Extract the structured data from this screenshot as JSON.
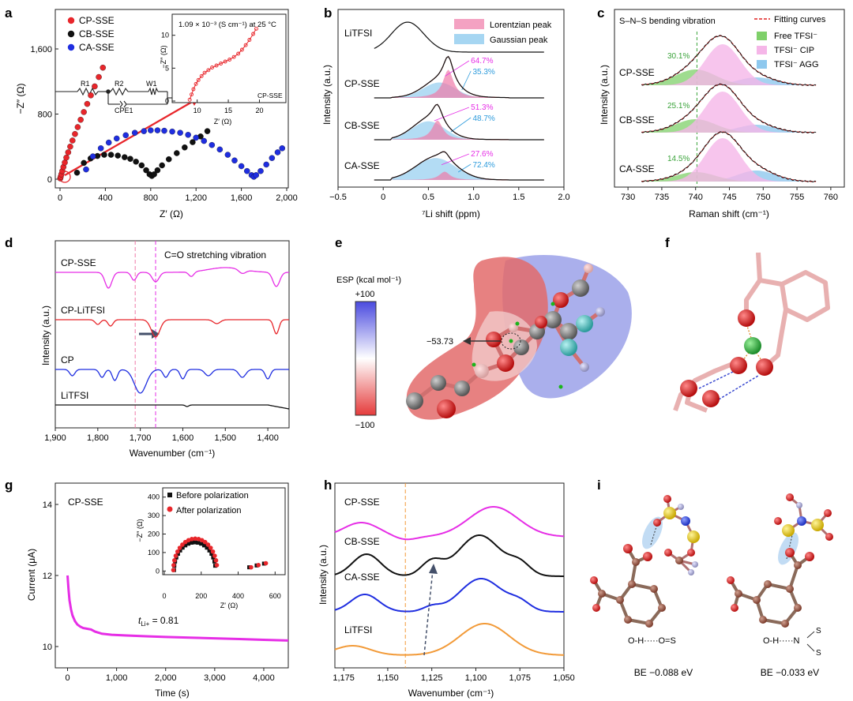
{
  "panel_letters": [
    "a",
    "b",
    "c",
    "d",
    "e",
    "f",
    "g",
    "h",
    "i"
  ],
  "chart_data": [
    {
      "panel": "a",
      "type": "scatter",
      "xlabel": "Z′ (Ω)",
      "ylabel": "−Z″ (Ω)",
      "xlim": [
        0,
        2000
      ],
      "ylim": [
        -50,
        2000
      ],
      "xticks": [
        "0",
        "400",
        "800",
        "1,200",
        "1,600",
        "2,000"
      ],
      "yticks": [
        "0",
        "800",
        "1,600"
      ],
      "legend_position": "top-left",
      "series": [
        {
          "name": "CP-SSE",
          "color": "#e8262b",
          "x": [
            2,
            6,
            12,
            20,
            30,
            42,
            56,
            72,
            90,
            110,
            132,
            156,
            182,
            210,
            240,
            272,
            306,
            342,
            378
          ],
          "y": [
            10,
            30,
            60,
            100,
            150,
            205,
            265,
            330,
            400,
            475,
            555,
            640,
            730,
            825,
            925,
            1030,
            1140,
            1255,
            1370
          ]
        },
        {
          "name": "CB-SSE",
          "color": "#111111",
          "x": [
            150,
            210,
            270,
            330,
            390,
            450,
            510,
            570,
            620,
            670,
            720,
            760,
            790,
            810,
            830,
            860,
            900,
            960,
            1030,
            1100,
            1170,
            1240,
            1300
          ],
          "y": [
            80,
            200,
            255,
            285,
            300,
            300,
            290,
            270,
            250,
            215,
            170,
            110,
            60,
            40,
            60,
            110,
            170,
            245,
            320,
            390,
            455,
            525,
            590
          ]
        },
        {
          "name": "CA-SSE",
          "color": "#1f2ee0",
          "x": [
            230,
            290,
            360,
            430,
            500,
            580,
            660,
            740,
            800,
            860,
            920,
            990,
            1060,
            1130,
            1200,
            1270,
            1340,
            1410,
            1480,
            1540,
            1600,
            1650,
            1690,
            1710,
            1730,
            1770,
            1820,
            1870,
            1920,
            1960
          ],
          "y": [
            120,
            280,
            380,
            450,
            500,
            540,
            570,
            590,
            600,
            600,
            595,
            585,
            570,
            545,
            510,
            470,
            420,
            365,
            300,
            230,
            160,
            100,
            50,
            30,
            50,
            100,
            180,
            260,
            330,
            380
          ]
        }
      ],
      "annotation": "",
      "inset": {
        "text": "1.09 × 10⁻³ (S cm⁻¹) at 25 °C",
        "label": "CP-SSE",
        "xlabel": "Z′ (Ω)",
        "ylabel": "−Z″ (Ω)",
        "xlim": [
          7,
          24
        ],
        "ylim": [
          0,
          12
        ],
        "xticks": [
          "10",
          "15",
          "20"
        ],
        "yticks": [
          "0",
          "5",
          "10"
        ],
        "x": [
          8.8,
          9.1,
          9.4,
          9.8,
          10.2,
          10.7,
          11.2,
          11.8,
          12.4,
          13.1,
          13.8,
          14.5,
          15.2,
          15.9,
          16.6,
          17.2,
          17.8,
          18.4,
          19.0,
          19.5
        ],
        "y": [
          0.2,
          1.0,
          1.8,
          2.6,
          3.2,
          3.8,
          4.3,
          4.7,
          5.1,
          5.4,
          5.7,
          6.0,
          6.3,
          6.7,
          7.2,
          7.8,
          8.5,
          9.3,
          10.2,
          11.0
        ]
      },
      "circuit_labels": [
        "R1",
        "R2",
        "W1",
        "CPE1"
      ]
    },
    {
      "panel": "b",
      "type": "line",
      "xlabel": "⁷Li shift (ppm)",
      "ylabel": "Intensity (a.u.)",
      "xlim": [
        -0.5,
        2.0
      ],
      "xticks": [
        "−0.5",
        "0",
        "0.5",
        "1.0",
        "1.5",
        "2.0"
      ],
      "legend": [
        "Lorentzian peak",
        "Gaussian peak"
      ],
      "legend_colors": [
        "#f07aa8",
        "#a6d6f2"
      ],
      "series": [
        {
          "name": "LiTFSI",
          "baseline": 0,
          "peak": 0.27,
          "height": 38,
          "width": 0.18
        },
        {
          "name": "CP-SSE",
          "baseline": 1,
          "peak": 0.72,
          "height": 46,
          "width": 0.14,
          "lorentz_pct": "64.7%",
          "gauss_pct": "35.3%"
        },
        {
          "name": "CB-SSE",
          "baseline": 2,
          "peak": 0.6,
          "height": 40,
          "width": 0.14,
          "lorentz_pct": "51.3%",
          "gauss_pct": "48.7%"
        },
        {
          "name": "CA-SSE",
          "baseline": 3,
          "peak": 0.68,
          "height": 32,
          "width": 0.2,
          "lorentz_pct": "27.6%",
          "gauss_pct": "72.4%"
        }
      ]
    },
    {
      "panel": "c",
      "type": "line",
      "title": "S–N–S bending vibration",
      "xlabel": "Raman shift (cm⁻¹)",
      "ylabel": "Intensity (a.u.)",
      "xlim": [
        728,
        762
      ],
      "xticks": [
        "730",
        "735",
        "740",
        "745",
        "750",
        "755",
        "760"
      ],
      "legend": [
        "Fitting curves",
        "Free TFSI⁻",
        "TFSI⁻ CIP",
        "TFSI⁻ AGG"
      ],
      "legend_colors": [
        "#e02020",
        "#7fd06a",
        "#f5b6e8",
        "#8ec8ee"
      ],
      "series": [
        {
          "name": "CP-SSE",
          "free_pct": "30.1%"
        },
        {
          "name": "CB-SSE",
          "free_pct": "25.1%"
        },
        {
          "name": "CA-SSE",
          "free_pct": "14.5%"
        }
      ]
    },
    {
      "panel": "d",
      "type": "line",
      "xlabel": "Wavenumber (cm⁻¹)",
      "ylabel": "Intensity (a.u.)",
      "xlim": [
        1900,
        1350
      ],
      "xticks": [
        "1,900",
        "1,800",
        "1,700",
        "1,600",
        "1,500",
        "1,400"
      ],
      "annotation": "C=O stretching vibration",
      "series": [
        {
          "name": "CP-SSE",
          "color": "#e62ee6"
        },
        {
          "name": "CP-LiTFSI",
          "color": "#e8262b"
        },
        {
          "name": "CP",
          "color": "#1f2ee0"
        },
        {
          "name": "LiTFSI",
          "color": "#111111"
        }
      ]
    },
    {
      "panel": "g",
      "type": "line",
      "title": "CP-SSE",
      "xlabel": "Time (s)",
      "ylabel": "Current (μA)",
      "xlim": [
        -250,
        4500
      ],
      "ylim": [
        9.4,
        14.6
      ],
      "xticks": [
        "0",
        "1,000",
        "2,000",
        "3,000",
        "4,000"
      ],
      "yticks": [
        "10",
        "12",
        "14"
      ],
      "annotation": "t_Li+ = 0.81",
      "series": [
        {
          "name": "",
          "color": "#e62ee6",
          "x": [
            0,
            20,
            40,
            70,
            100,
            150,
            200,
            260,
            320,
            400,
            480,
            560,
            700,
            900,
            1200,
            1600,
            2000,
            2500,
            3000,
            3500,
            4000,
            4500
          ],
          "y": [
            12.0,
            11.6,
            11.3,
            11.05,
            10.88,
            10.72,
            10.62,
            10.56,
            10.52,
            10.5,
            10.48,
            10.42,
            10.36,
            10.33,
            10.31,
            10.29,
            10.27,
            10.25,
            10.23,
            10.21,
            10.19,
            10.17
          ]
        }
      ],
      "inset": {
        "xlabel": "Z′ (Ω)",
        "ylabel": "−Z″ (Ω)",
        "xlim": [
          0,
          650
        ],
        "ylim": [
          -20,
          450
        ],
        "xticks": [
          "0",
          "200",
          "400",
          "600"
        ],
        "yticks": [
          "0",
          "100",
          "200",
          "300",
          "400"
        ],
        "legend": [
          "Before polarization",
          "After polarization"
        ],
        "legend_colors": [
          "#111111",
          "#e8262b"
        ]
      }
    },
    {
      "panel": "h",
      "type": "line",
      "xlabel": "Wavenumber (cm⁻¹)",
      "ylabel": "Intensity (a.u.)",
      "xlim": [
        1180,
        1050
      ],
      "xticks": [
        "1,175",
        "1,150",
        "1,125",
        "1,100",
        "1,075",
        "1,050"
      ],
      "series": [
        {
          "name": "CP-SSE",
          "color": "#e62ee6"
        },
        {
          "name": "CB-SSE",
          "color": "#111111"
        },
        {
          "name": "CA-SSE",
          "color": "#1f2ee0"
        },
        {
          "name": "LiTFSI",
          "color": "#f29a38"
        }
      ]
    }
  ],
  "panel_e": {
    "colorbar_title": "ESP (kcal mol⁻¹)",
    "colorbar_max": "+100",
    "colorbar_min": "−100",
    "value_label": "−53.73"
  },
  "panel_i": {
    "left_bond": "O-H·····O=S",
    "left_be": "BE −0.088 eV",
    "right_bond": "O-H·····N",
    "right_s1": "S",
    "right_s2": "S",
    "right_be": "BE −0.033 eV"
  }
}
